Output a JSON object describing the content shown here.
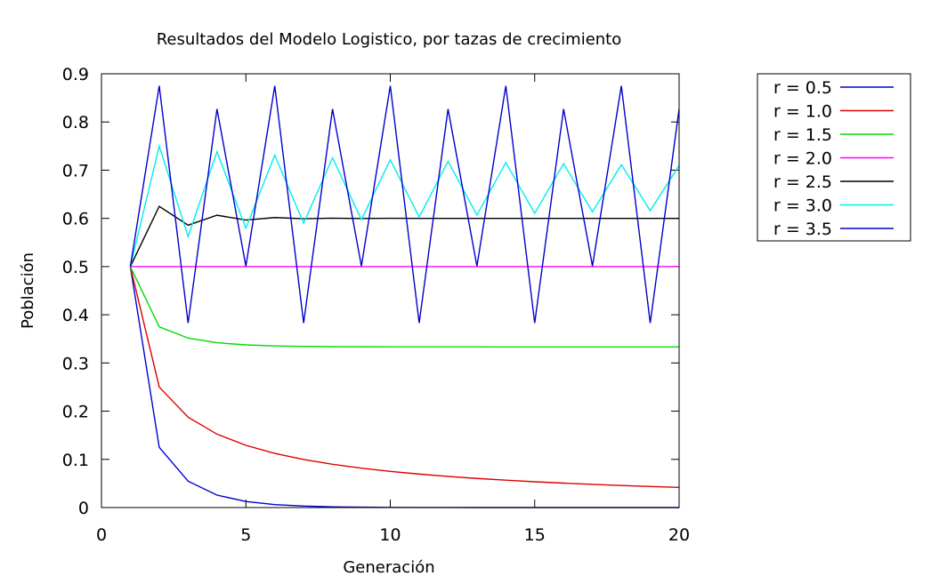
{
  "chart_data": {
    "type": "line",
    "title": "Resultados del Modelo Logistico, por tazas de crecimiento",
    "xlabel": "Generación",
    "ylabel": "Población",
    "xlim": [
      0,
      20
    ],
    "ylim": [
      0,
      0.9
    ],
    "xticks": [
      0,
      5,
      10,
      15,
      20
    ],
    "yticks": [
      0,
      0.1,
      0.2,
      0.3,
      0.4,
      0.5,
      0.6,
      0.7,
      0.8,
      0.9
    ],
    "xtick_labels": [
      "0",
      "5",
      "10",
      "15",
      "20"
    ],
    "ytick_labels": [
      "0",
      "0.1",
      "0.2",
      "0.3",
      "0.4",
      "0.5",
      "0.6",
      "0.7",
      "0.8",
      "0.9"
    ],
    "grid": false,
    "legend_position": "outside-top-right",
    "x": [
      1,
      2,
      3,
      4,
      5,
      6,
      7,
      8,
      9,
      10,
      11,
      12,
      13,
      14,
      15,
      16,
      17,
      18,
      19,
      20
    ],
    "series": [
      {
        "name": "r = 0.5",
        "color": "#0000cc",
        "values": [
          0.5,
          0.125,
          0.0547,
          0.0258,
          0.0126,
          0.0062,
          0.0031,
          0.0015,
          0.0008,
          0.0004,
          0.0002,
          0.0001,
          0.0,
          0.0,
          0.0,
          0.0,
          0.0,
          0.0,
          0.0,
          0.0
        ]
      },
      {
        "name": "r = 1.0",
        "color": "#dd0000",
        "values": [
          0.5,
          0.25,
          0.1875,
          0.1523,
          0.1291,
          0.1124,
          0.0998,
          0.0898,
          0.0817,
          0.0751,
          0.0694,
          0.0646,
          0.0604,
          0.0568,
          0.0535,
          0.0507,
          0.0481,
          0.0458,
          0.0437,
          0.0418
        ]
      },
      {
        "name": "r = 1.5",
        "color": "#00dd00",
        "values": [
          0.5,
          0.375,
          0.3516,
          0.3419,
          0.3375,
          0.3354,
          0.3343,
          0.3338,
          0.3336,
          0.3335,
          0.3334,
          0.3334,
          0.3334,
          0.3333,
          0.3333,
          0.3333,
          0.3333,
          0.3333,
          0.3333,
          0.3333
        ]
      },
      {
        "name": "r = 2.0",
        "color": "#ff00ff",
        "values": [
          0.5,
          0.5,
          0.5,
          0.5,
          0.5,
          0.5,
          0.5,
          0.5,
          0.5,
          0.5,
          0.5,
          0.5,
          0.5,
          0.5,
          0.5,
          0.5,
          0.5,
          0.5,
          0.5,
          0.5
        ]
      },
      {
        "name": "r = 2.5",
        "color": "#000000",
        "values": [
          0.5,
          0.625,
          0.5859,
          0.6065,
          0.5966,
          0.6017,
          0.5992,
          0.6004,
          0.5998,
          0.6001,
          0.6,
          0.6,
          0.6,
          0.6,
          0.6,
          0.6,
          0.6,
          0.6,
          0.6,
          0.6
        ]
      },
      {
        "name": "r = 3.0",
        "color": "#00eeee",
        "values": [
          0.5,
          0.75,
          0.5625,
          0.7383,
          0.5797,
          0.731,
          0.5899,
          0.7257,
          0.5972,
          0.7217,
          0.6025,
          0.7184,
          0.6069,
          0.7157,
          0.6104,
          0.7134,
          0.6134,
          0.7114,
          0.6159,
          0.7097
        ]
      },
      {
        "name": "r = 3.5",
        "color": "#0000cc",
        "values": [
          0.5,
          0.875,
          0.3828,
          0.8269,
          0.501,
          0.875,
          0.3828,
          0.8269,
          0.501,
          0.875,
          0.3828,
          0.8269,
          0.501,
          0.875,
          0.3828,
          0.8269,
          0.501,
          0.875,
          0.3828,
          0.8269
        ]
      }
    ]
  }
}
